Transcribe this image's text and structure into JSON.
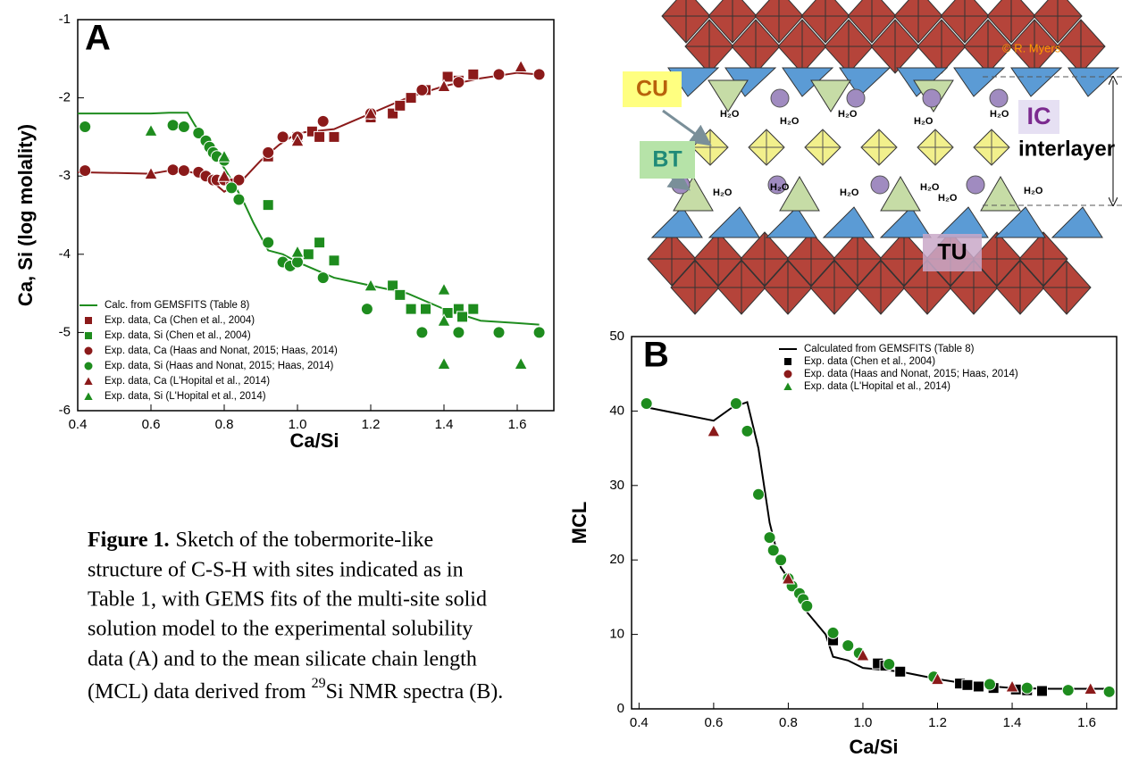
{
  "chart_data": [
    {
      "type": "scatter",
      "panel_label": "A",
      "x_label": "Ca/Si",
      "y_label": "Ca, Si (log molality)",
      "xlim": [
        0.4,
        1.7
      ],
      "xticks": [
        0.4,
        0.6,
        0.8,
        {
          "value": 1,
          "label": "1.0"
        },
        1.2,
        1.4,
        1.6
      ],
      "ylim": [
        -6,
        -1
      ],
      "yticks": [
        -6,
        -5,
        -4,
        -3,
        -2,
        -1
      ],
      "legend": "lower left",
      "series": [
        {
          "name": "Calc. from GEMSFITS (Table 8)",
          "color": "#1e8c1e",
          "marker": "line",
          "x": [
            0.4,
            0.6,
            0.65,
            0.7,
            0.72,
            0.75,
            0.78,
            0.8,
            0.82,
            0.85,
            0.88,
            0.92,
            0.96,
            1.0,
            1.05,
            1.1,
            1.2,
            1.3,
            1.4,
            1.5,
            1.6,
            1.66
          ],
          "values": [
            -2.2,
            -2.2,
            -2.19,
            -2.19,
            -2.35,
            -2.55,
            -2.75,
            -2.9,
            -3.05,
            -3.3,
            -3.6,
            -3.95,
            -4.0,
            -4.1,
            -4.2,
            -4.3,
            -4.4,
            -4.5,
            -4.7,
            -4.85,
            -4.88,
            -4.9
          ]
        },
        {
          "color": "#8b1a1a",
          "marker": "line",
          "x": [
            0.4,
            0.6,
            0.65,
            0.7,
            0.75,
            0.8,
            0.85,
            0.9,
            0.95,
            1.0,
            1.1,
            1.2,
            1.3,
            1.4,
            1.5,
            1.6,
            1.66
          ],
          "values": [
            -2.95,
            -2.97,
            -2.93,
            -2.94,
            -3.0,
            -3.2,
            -3.05,
            -2.8,
            -2.6,
            -2.45,
            -2.4,
            -2.2,
            -2.0,
            -1.85,
            -1.75,
            -1.68,
            -1.7
          ]
        },
        {
          "name": "Exp. data, Ca (Chen et al., 2004)",
          "color": "#8b1a1a",
          "marker": "square",
          "x": [
            0.92,
            1.0,
            1.04,
            1.06,
            1.1,
            1.2,
            1.26,
            1.28,
            1.31,
            1.35,
            1.41,
            1.44,
            1.48
          ],
          "values": [
            -2.75,
            -2.5,
            -2.43,
            -2.5,
            -2.5,
            -2.25,
            -2.2,
            -2.1,
            -2.0,
            -1.9,
            -1.73,
            -1.78,
            -1.7
          ]
        },
        {
          "name": "Exp. data, Si (Chen et al., 2004)",
          "color": "#1e8c1e",
          "marker": "square",
          "x": [
            0.92,
            1.03,
            1.06,
            1.1,
            1.26,
            1.28,
            1.31,
            1.35,
            1.41,
            1.44,
            1.45,
            1.48
          ],
          "values": [
            -3.37,
            -4.0,
            -3.85,
            -4.08,
            -4.4,
            -4.52,
            -4.7,
            -4.7,
            -4.75,
            -4.7,
            -4.8,
            -4.7
          ]
        },
        {
          "name": "Exp. data, Ca (Haas and Nonat, 2015; Haas, 2014)",
          "color": "#8b1a1a",
          "marker": "circle",
          "x": [
            0.42,
            0.66,
            0.69,
            0.73,
            0.75,
            0.77,
            0.78,
            0.8,
            0.82,
            0.84,
            0.92,
            0.96,
            1.0,
            1.07,
            1.2,
            1.34,
            1.44,
            1.55,
            1.66
          ],
          "values": [
            -2.93,
            -2.92,
            -2.93,
            -2.95,
            -3.0,
            -3.05,
            -3.05,
            -3.05,
            -3.1,
            -3.05,
            -2.7,
            -2.5,
            -2.5,
            -2.3,
            -2.2,
            -1.9,
            -1.8,
            -1.7,
            -1.7
          ]
        },
        {
          "name": "Exp. data, Si (Haas and Nonat, 2015; Haas, 2014)",
          "color": "#1e8c1e",
          "marker": "circle",
          "x": [
            0.42,
            0.66,
            0.69,
            0.73,
            0.75,
            0.76,
            0.77,
            0.78,
            0.8,
            0.82,
            0.84,
            0.92,
            0.96,
            0.98,
            1.0,
            1.07,
            1.19,
            1.34,
            1.44,
            1.55,
            1.66
          ],
          "values": [
            -2.37,
            -2.35,
            -2.37,
            -2.45,
            -2.55,
            -2.63,
            -2.7,
            -2.75,
            -2.8,
            -3.15,
            -3.3,
            -3.85,
            -4.1,
            -4.15,
            -4.1,
            -4.3,
            -4.7,
            -5.0,
            -5.0,
            -5.0,
            -5.0
          ]
        },
        {
          "name": "Exp. data, Ca (L'Hopital et al., 2014)",
          "color": "#8b1a1a",
          "marker": "triangle",
          "x": [
            0.6,
            0.8,
            1.0,
            1.2,
            1.4,
            1.61
          ],
          "values": [
            -2.97,
            -3.0,
            -2.55,
            -2.2,
            -1.85,
            -1.6
          ]
        },
        {
          "name": "Exp. data, Si (L'Hopital et al., 2014)",
          "color": "#1e8c1e",
          "marker": "triangle",
          "x": [
            0.6,
            0.8,
            1.0,
            1.2,
            1.4,
            1.4,
            1.4,
            1.61
          ],
          "values": [
            -2.42,
            -2.75,
            -3.97,
            -4.4,
            -4.45,
            -4.85,
            -5.4,
            -5.4
          ]
        }
      ]
    },
    {
      "type": "scatter",
      "panel_label": "B",
      "x_label": "Ca/Si",
      "y_label": "MCL",
      "xlim": [
        0.38,
        1.68
      ],
      "xticks": [
        0.4,
        0.6,
        0.8,
        {
          "value": 1,
          "label": "1.0"
        },
        1.2,
        1.4,
        1.6
      ],
      "ylim": [
        0,
        50
      ],
      "yticks": [
        0,
        10,
        20,
        30,
        40,
        50
      ],
      "legend": "upper right",
      "series": [
        {
          "name": "Calculated from GEMSFITS (Table 8)",
          "color": "#000000",
          "marker": "line",
          "x": [
            0.42,
            0.6,
            0.65,
            0.69,
            0.72,
            0.75,
            0.78,
            0.8,
            0.85,
            0.9,
            0.92,
            0.96,
            1.0,
            1.1,
            1.2,
            1.3,
            1.4,
            1.5,
            1.66
          ],
          "values": [
            40.5,
            38.7,
            40.5,
            41.2,
            35,
            25,
            19,
            17.5,
            13,
            10,
            7,
            6.5,
            5.5,
            5,
            4,
            3.2,
            2.8,
            2.7,
            2.7
          ]
        },
        {
          "name": "Exp. data (Chen et al., 2004)",
          "color": "#000000",
          "marker": "square",
          "x": [
            0.92,
            1.04,
            1.06,
            1.1,
            1.26,
            1.28,
            1.31,
            1.35,
            1.41,
            1.44,
            1.48
          ],
          "values": [
            9.2,
            6.1,
            5.8,
            5.0,
            3.4,
            3.2,
            3.0,
            2.8,
            2.6,
            2.5,
            2.4
          ]
        },
        {
          "name": "Exp. data (Haas and Nonat, 2015; Haas, 2014)",
          "color": "#1e8c1e",
          "legend_color": "#8b1a1a",
          "marker": "circle",
          "x": [
            0.42,
            0.66,
            0.69,
            0.72,
            0.75,
            0.76,
            0.78,
            0.8,
            0.81,
            0.83,
            0.84,
            0.85,
            0.92,
            0.96,
            0.99,
            1.07,
            1.19,
            1.34,
            1.44,
            1.55,
            1.66
          ],
          "values": [
            41,
            41,
            37.3,
            28.8,
            23,
            21.3,
            20,
            17.5,
            16.5,
            15.5,
            14.7,
            13.8,
            10.2,
            8.5,
            7.5,
            6.0,
            4.3,
            3.3,
            2.8,
            2.5,
            2.3
          ]
        },
        {
          "name": "Exp. data (L'Hopital et al., 2014)",
          "color": "#8b1a1a",
          "legend_color": "#1e8c1e",
          "marker": "triangle",
          "x": [
            0.6,
            0.8,
            1.0,
            1.2,
            1.4,
            1.61
          ],
          "values": [
            37.3,
            17.5,
            7.2,
            4.0,
            3.0,
            2.7
          ]
        }
      ]
    }
  ],
  "diagram": {
    "copyright": "© R. Myers",
    "cu": "CU",
    "bt": "BT",
    "ic": "IC",
    "interlayer": "interlayer",
    "tu": "TU",
    "water": "H₂O"
  },
  "caption": {
    "label": "Figure 1.",
    "lines": [
      "Sketch of the tobermorite-like",
      "structure of C-S-H with sites indicated as in",
      "Table 1, with GEMS fits of the multi-site solid",
      "solution model to the experimental solubility",
      "data (A) and to the mean silicate chain length",
      "(MCL) data derived from"
    ],
    "superscript": "29",
    "end": "Si NMR spectra (B)."
  }
}
